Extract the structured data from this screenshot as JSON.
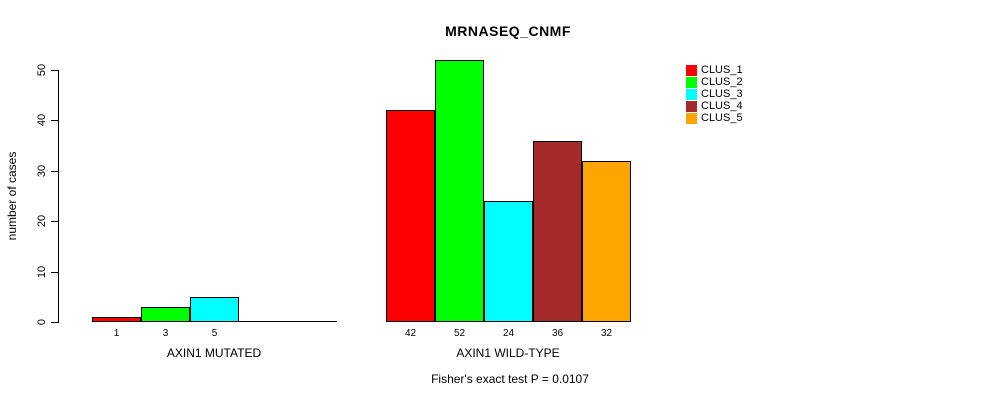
{
  "chart_data": {
    "type": "bar",
    "title": "MRNASEQ_CNMF",
    "ylabel": "number of cases",
    "ylim": [
      0,
      50
    ],
    "yticks": [
      0,
      10,
      20,
      30,
      40,
      50
    ],
    "grid": false,
    "categories": [
      "AXIN1 MUTATED",
      "AXIN1 WILD-TYPE"
    ],
    "series": [
      {
        "name": "CLUS_1",
        "color": "#FF0000",
        "values": [
          1,
          42
        ]
      },
      {
        "name": "CLUS_2",
        "color": "#00FF00",
        "values": [
          3,
          52
        ]
      },
      {
        "name": "CLUS_3",
        "color": "#00FFFF",
        "values": [
          5,
          24
        ]
      },
      {
        "name": "CLUS_4",
        "color": "#A52A2A",
        "values": [
          0,
          36
        ]
      },
      {
        "name": "CLUS_5",
        "color": "#FFA500",
        "values": [
          0,
          32
        ]
      }
    ],
    "bar_value_labels_shown_only_for_nonzero": true,
    "annotation": "Fisher's exact test P = 0.0107",
    "legend": {
      "position": "right",
      "entries": [
        "CLUS_1",
        "CLUS_2",
        "CLUS_3",
        "CLUS_4",
        "CLUS_5"
      ]
    }
  }
}
